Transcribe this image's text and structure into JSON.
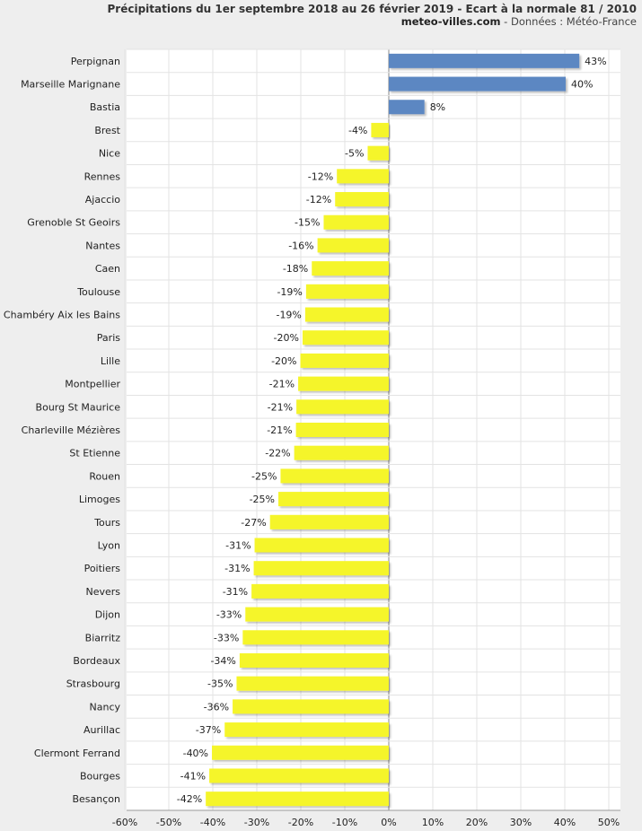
{
  "header": {
    "title": "Précipitations du 1er septembre 2018 au 26 février 2019 - Ecart à la normale 81 / 2010",
    "site": "meteo-villes.com",
    "source": " - Données : Météo-France"
  },
  "colors": {
    "positive": "#5b87c2",
    "negative": "#f5f52a",
    "plot_bg": "#ffffff",
    "grid": "#e3e3e3"
  },
  "chart_data": {
    "type": "bar",
    "orientation": "horizontal",
    "title": "Précipitations du 1er septembre 2018 au 26 février 2019 - Ecart à la normale 81 / 2010",
    "xlabel": "",
    "ylabel": "",
    "xlim": [
      -60,
      53
    ],
    "xticks": [
      -60,
      -50,
      -40,
      -30,
      -20,
      -10,
      0,
      10,
      20,
      30,
      40,
      50
    ],
    "xtick_labels": [
      "-60%",
      "-50%",
      "-40%",
      "-30%",
      "-20%",
      "-10%",
      "0%",
      "10%",
      "20%",
      "30%",
      "40%",
      "50%"
    ],
    "grid": true,
    "categories": [
      "Perpignan",
      "Marseille Marignane",
      "Bastia",
      "Brest",
      "Nice",
      "Rennes",
      "Ajaccio",
      "Grenoble St Geoirs",
      "Nantes",
      "Caen",
      "Toulouse",
      "Chambéry Aix les Bains",
      "Paris",
      "Lille",
      "Montpellier",
      "Bourg St Maurice",
      "Charleville Mézières",
      "St Etienne",
      "Rouen",
      "Limoges",
      "Tours",
      "Lyon",
      "Poitiers",
      "Nevers",
      "Dijon",
      "Biarritz",
      "Bordeaux",
      "Strasbourg",
      "Nancy",
      "Aurillac",
      "Clermont Ferrand",
      "Bourges",
      "Besançon"
    ],
    "values": [
      43.3,
      40.2,
      8.1,
      -4.0,
      -4.8,
      -11.8,
      -12.2,
      -14.8,
      -16.2,
      -17.5,
      -18.8,
      -19.0,
      -19.6,
      -20.1,
      -20.6,
      -21.0,
      -21.1,
      -21.5,
      -24.6,
      -25.1,
      -27.0,
      -30.5,
      -30.7,
      -31.2,
      -32.6,
      -33.2,
      -33.9,
      -34.6,
      -35.5,
      -37.3,
      -40.2,
      -40.8,
      -41.6
    ],
    "value_labels": [
      "43%",
      "40%",
      "8%",
      "-4%",
      "-5%",
      "-12%",
      "-12%",
      "-15%",
      "-16%",
      "-18%",
      "-19%",
      "-19%",
      "-20%",
      "-20%",
      "-21%",
      "-21%",
      "-21%",
      "-22%",
      "-25%",
      "-25%",
      "-27%",
      "-31%",
      "-31%",
      "-31%",
      "-33%",
      "-33%",
      "-34%",
      "-35%",
      "-36%",
      "-37%",
      "-40%",
      "-41%",
      "-42%"
    ]
  }
}
